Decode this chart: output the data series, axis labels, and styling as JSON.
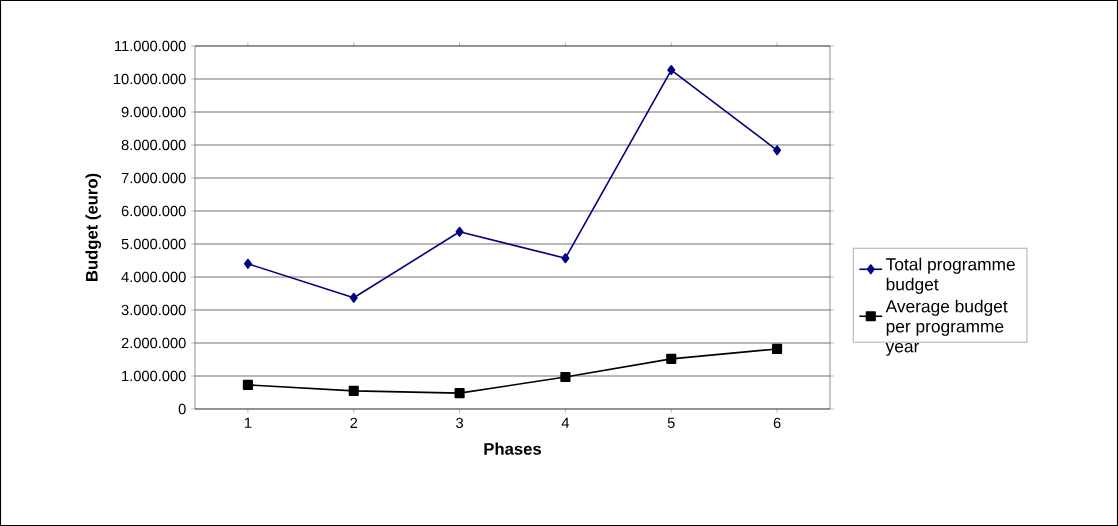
{
  "chart_data": {
    "type": "line",
    "xlabel": "Phases",
    "ylabel": "Budget (euro)",
    "categories": [
      "1",
      "2",
      "3",
      "4",
      "5",
      "6"
    ],
    "series": [
      {
        "name": "Total programme budget",
        "color": "#000080",
        "marker": "diamond",
        "values": [
          4400000,
          3370000,
          5370000,
          4570000,
          10270000,
          7840000
        ]
      },
      {
        "name": "Average budget per programme year",
        "color": "#000000",
        "marker": "square",
        "values": [
          730000,
          550000,
          480000,
          970000,
          1520000,
          1820000
        ]
      }
    ],
    "ylim": [
      0,
      11000000
    ],
    "yticks": [
      0,
      {
        "value": 1000000,
        "label": "1.000.000"
      },
      {
        "value": 2000000,
        "label": "2.000.000"
      },
      {
        "value": 3000000,
        "label": "3.000.000"
      },
      {
        "value": 4000000,
        "label": "4.000.000"
      },
      {
        "value": 5000000,
        "label": "5.000.000"
      },
      {
        "value": 6000000,
        "label": "6.000.000"
      },
      {
        "value": 7000000,
        "label": "7.000.000"
      },
      {
        "value": 8000000,
        "label": "8.000.000"
      },
      {
        "value": 9000000,
        "label": "9.000.000"
      },
      {
        "value": 10000000,
        "label": "10.000.000"
      },
      {
        "value": 11000000,
        "label": "11.000.000"
      }
    ],
    "grid": "y",
    "legend": "right",
    "line_style": "solid"
  }
}
